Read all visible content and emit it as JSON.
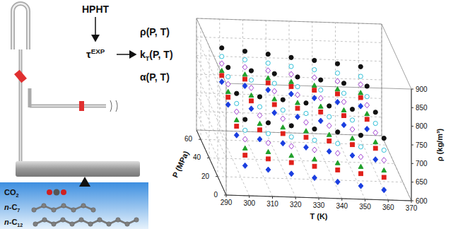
{
  "chart_data": {
    "type": "scatter3d",
    "x_label": "T (K)",
    "y_label": "P (MPa)",
    "z_label": "ρ (kg/m³)",
    "xlim": [
      290,
      370
    ],
    "xticks": [
      290,
      300,
      310,
      320,
      330,
      340,
      350,
      360,
      370
    ],
    "ylim": [
      0,
      70
    ],
    "yticks": [
      0,
      20,
      40,
      60
    ],
    "zlim": [
      600,
      900
    ],
    "zticks": [
      600,
      650,
      700,
      750,
      800,
      850,
      900
    ],
    "grid": true,
    "series": [
      {
        "color": "#1a3ee0",
        "marker": "diamond",
        "points": [
          [
            300,
            10,
            656
          ],
          [
            310,
            10,
            647
          ],
          [
            320,
            10,
            638
          ],
          [
            330,
            10,
            629
          ],
          [
            340,
            10,
            620
          ],
          [
            350,
            10,
            611
          ],
          [
            360,
            10,
            602
          ],
          [
            300,
            30,
            688
          ],
          [
            310,
            30,
            679
          ],
          [
            320,
            30,
            670
          ],
          [
            330,
            30,
            661
          ],
          [
            340,
            30,
            652
          ],
          [
            350,
            30,
            643
          ],
          [
            360,
            30,
            634
          ],
          [
            300,
            50,
            720
          ],
          [
            310,
            50,
            711
          ],
          [
            320,
            50,
            702
          ],
          [
            330,
            50,
            693
          ],
          [
            340,
            50,
            684
          ],
          [
            350,
            50,
            675
          ],
          [
            360,
            50,
            666
          ],
          [
            300,
            65,
            744
          ],
          [
            310,
            65,
            735
          ],
          [
            320,
            65,
            726
          ],
          [
            330,
            65,
            717
          ],
          [
            340,
            65,
            708
          ],
          [
            350,
            65,
            699
          ],
          [
            360,
            65,
            690
          ]
        ]
      },
      {
        "color": "#e0201a",
        "marker": "square",
        "points": [
          [
            300,
            10,
            684
          ],
          [
            310,
            10,
            676
          ],
          [
            320,
            10,
            668
          ],
          [
            330,
            10,
            660
          ],
          [
            340,
            10,
            652
          ],
          [
            350,
            10,
            644
          ],
          [
            360,
            10,
            636
          ],
          [
            300,
            30,
            712
          ],
          [
            310,
            30,
            704
          ],
          [
            320,
            30,
            696
          ],
          [
            330,
            30,
            688
          ],
          [
            340,
            30,
            680
          ],
          [
            350,
            30,
            672
          ],
          [
            360,
            30,
            664
          ],
          [
            300,
            50,
            740
          ],
          [
            310,
            50,
            732
          ],
          [
            320,
            50,
            724
          ],
          [
            330,
            50,
            716
          ],
          [
            340,
            50,
            708
          ],
          [
            350,
            50,
            700
          ],
          [
            360,
            50,
            692
          ],
          [
            300,
            65,
            761
          ],
          [
            310,
            65,
            753
          ],
          [
            320,
            65,
            745
          ],
          [
            330,
            65,
            737
          ],
          [
            340,
            65,
            729
          ],
          [
            350,
            65,
            721
          ],
          [
            360,
            65,
            713
          ]
        ]
      },
      {
        "color": "#1fa02a",
        "marker": "triangle",
        "points": [
          [
            300,
            10,
            703
          ],
          [
            310,
            10,
            695
          ],
          [
            320,
            10,
            687
          ],
          [
            330,
            10,
            679
          ],
          [
            340,
            10,
            671
          ],
          [
            350,
            10,
            663
          ],
          [
            360,
            10,
            655
          ],
          [
            300,
            30,
            729
          ],
          [
            310,
            30,
            721
          ],
          [
            320,
            30,
            713
          ],
          [
            330,
            30,
            705
          ],
          [
            340,
            30,
            697
          ],
          [
            350,
            30,
            689
          ],
          [
            360,
            30,
            681
          ],
          [
            300,
            50,
            755
          ],
          [
            310,
            50,
            747
          ],
          [
            320,
            50,
            739
          ],
          [
            330,
            50,
            731
          ],
          [
            340,
            50,
            723
          ],
          [
            350,
            50,
            715
          ],
          [
            360,
            50,
            707
          ],
          [
            300,
            65,
            774
          ],
          [
            310,
            65,
            766
          ],
          [
            320,
            65,
            758
          ],
          [
            330,
            65,
            750
          ],
          [
            340,
            65,
            742
          ],
          [
            350,
            65,
            734
          ],
          [
            360,
            65,
            726
          ]
        ]
      },
      {
        "color": "#a040d0",
        "marker": "diamond-open",
        "points": [
          [
            300,
            10,
            727
          ],
          [
            310,
            10,
            719
          ],
          [
            320,
            10,
            712
          ],
          [
            330,
            10,
            704
          ],
          [
            340,
            10,
            697
          ],
          [
            350,
            10,
            689
          ],
          [
            360,
            10,
            682
          ],
          [
            300,
            30,
            751
          ],
          [
            310,
            30,
            743
          ],
          [
            320,
            30,
            736
          ],
          [
            330,
            30,
            728
          ],
          [
            340,
            30,
            721
          ],
          [
            350,
            30,
            713
          ],
          [
            360,
            30,
            706
          ],
          [
            300,
            50,
            775
          ],
          [
            310,
            50,
            767
          ],
          [
            320,
            50,
            760
          ],
          [
            330,
            50,
            752
          ],
          [
            340,
            50,
            745
          ],
          [
            350,
            50,
            737
          ],
          [
            360,
            50,
            730
          ],
          [
            300,
            65,
            793
          ],
          [
            310,
            65,
            785
          ],
          [
            320,
            65,
            778
          ],
          [
            330,
            65,
            770
          ],
          [
            340,
            65,
            763
          ],
          [
            350,
            65,
            755
          ],
          [
            360,
            65,
            748
          ]
        ]
      },
      {
        "color": "#30c0d8",
        "marker": "circle-open",
        "points": [
          [
            300,
            10,
            751
          ],
          [
            310,
            10,
            744
          ],
          [
            320,
            10,
            737
          ],
          [
            330,
            10,
            730
          ],
          [
            340,
            10,
            723
          ],
          [
            350,
            10,
            716
          ],
          [
            360,
            10,
            709
          ],
          [
            300,
            30,
            773
          ],
          [
            310,
            30,
            766
          ],
          [
            320,
            30,
            759
          ],
          [
            330,
            30,
            752
          ],
          [
            340,
            30,
            745
          ],
          [
            350,
            30,
            738
          ],
          [
            360,
            30,
            731
          ],
          [
            300,
            50,
            795
          ],
          [
            310,
            50,
            788
          ],
          [
            320,
            50,
            781
          ],
          [
            330,
            50,
            774
          ],
          [
            340,
            50,
            767
          ],
          [
            350,
            50,
            760
          ],
          [
            360,
            50,
            753
          ],
          [
            300,
            65,
            812
          ],
          [
            310,
            65,
            805
          ],
          [
            320,
            65,
            798
          ],
          [
            330,
            65,
            791
          ],
          [
            340,
            65,
            784
          ],
          [
            350,
            65,
            777
          ],
          [
            360,
            65,
            770
          ]
        ]
      },
      {
        "color": "#111111",
        "marker": "circle",
        "points": [
          [
            300,
            10,
            780
          ],
          [
            310,
            10,
            773
          ],
          [
            320,
            10,
            767
          ],
          [
            330,
            10,
            760
          ],
          [
            340,
            10,
            754
          ],
          [
            350,
            10,
            747
          ],
          [
            360,
            10,
            741
          ],
          [
            300,
            30,
            800
          ],
          [
            310,
            30,
            793
          ],
          [
            320,
            30,
            787
          ],
          [
            330,
            30,
            780
          ],
          [
            340,
            30,
            774
          ],
          [
            350,
            30,
            767
          ],
          [
            360,
            30,
            761
          ],
          [
            300,
            50,
            820
          ],
          [
            310,
            50,
            813
          ],
          [
            320,
            50,
            807
          ],
          [
            330,
            50,
            800
          ],
          [
            340,
            50,
            794
          ],
          [
            350,
            50,
            787
          ],
          [
            360,
            50,
            781
          ],
          [
            300,
            65,
            835
          ],
          [
            310,
            65,
            828
          ],
          [
            320,
            65,
            822
          ],
          [
            330,
            65,
            815
          ],
          [
            340,
            65,
            809
          ],
          [
            350,
            65,
            802
          ],
          [
            360,
            65,
            796
          ]
        ]
      }
    ]
  },
  "diagram": {
    "input": "HPHT",
    "measured": {
      "text": "τ",
      "sup": "EXP"
    },
    "outputs": [
      {
        "text": "ρ",
        "args": "(P, T)"
      },
      {
        "text": "k",
        "sub": "T",
        "args": "(P, T)"
      },
      {
        "text": "α",
        "args": "(P, T)"
      }
    ],
    "fluids": [
      {
        "text": "CO",
        "sub": "2"
      },
      {
        "text": "n-C",
        "sub": "7"
      },
      {
        "text": "n-C",
        "sub": "12"
      }
    ]
  }
}
